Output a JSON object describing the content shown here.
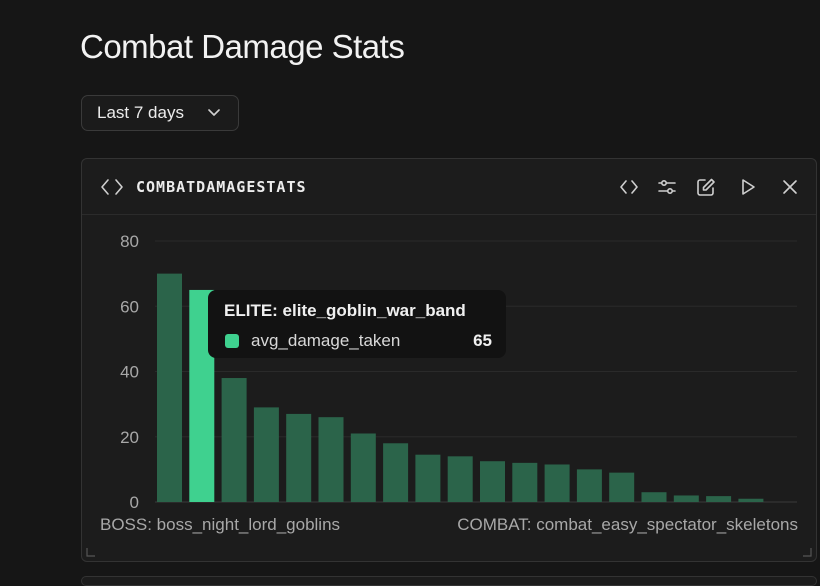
{
  "page": {
    "title": "Combat Damage Stats"
  },
  "filter": {
    "selected": "Last 7 days"
  },
  "panel": {
    "title": "COMBATDAMAGESTATS"
  },
  "colors": {
    "bar": "#2b644a",
    "bar_highlight": "#3fd18f",
    "swatch": "#3fd18f"
  },
  "tooltip": {
    "title": "ELITE: elite_goblin_war_band",
    "series": "avg_damage_taken",
    "value": "65"
  },
  "icons": [
    "code-icon",
    "sliders-icon",
    "edit-icon",
    "play-icon",
    "close-icon",
    "chevron-down-icon"
  ],
  "chart_data": {
    "type": "bar",
    "ylim": [
      0,
      80
    ],
    "yticks": [
      "0",
      "20",
      "40",
      "60",
      "80"
    ],
    "grid": true,
    "x_tick_labels": {
      "first": "BOSS: boss_night_lord_goblins",
      "last": "COMBAT: combat_easy_spectator_skeletons"
    },
    "series": [
      {
        "name": "avg_damage_taken",
        "values": [
          70,
          65,
          38,
          29,
          27,
          26,
          21,
          18,
          14.5,
          14,
          12.5,
          12,
          11.5,
          10,
          9,
          3,
          2,
          1.8,
          1,
          0
        ]
      }
    ],
    "highlight_index": 1
  }
}
